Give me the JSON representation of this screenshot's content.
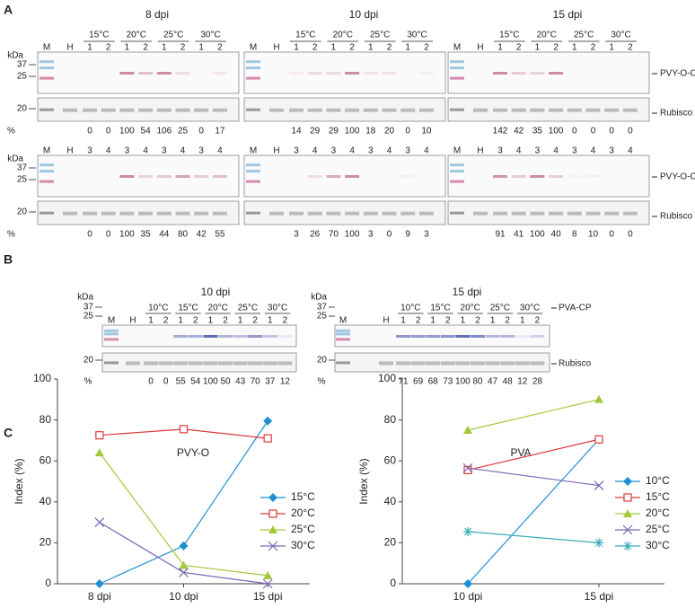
{
  "panel_labels": [
    "A",
    "B",
    "C"
  ],
  "labels": {
    "kda": "kDa",
    "markers": [
      "37",
      "25",
      "20"
    ],
    "percent": "%",
    "marker_lane": "M",
    "healthy_lane": "H",
    "rubisco": "Rubisco"
  },
  "panel_a": {
    "target": "PVY-O-CP",
    "titles": [
      "8 dpi",
      "10 dpi",
      "15 dpi"
    ],
    "temperatures": [
      "15°C",
      "20°C",
      "25°C",
      "30°C"
    ],
    "rows": [
      {
        "replicates": [
          "1",
          "2"
        ],
        "percent": [
          [
            0,
            0,
            100,
            54,
            106,
            25,
            0,
            17
          ],
          [
            14,
            29,
            29,
            100,
            18,
            20,
            0,
            10
          ],
          [
            142,
            42,
            35,
            100,
            0,
            0,
            0,
            0
          ]
        ]
      },
      {
        "replicates": [
          "3",
          "4"
        ],
        "percent": [
          [
            0,
            0,
            100,
            35,
            44,
            80,
            42,
            55
          ],
          [
            3,
            26,
            70,
            100,
            3,
            0,
            9,
            3
          ],
          [
            91,
            41,
            100,
            40,
            8,
            10,
            0,
            0
          ]
        ]
      }
    ]
  },
  "panel_b": {
    "target": "PVA-CP",
    "titles": [
      "10 dpi",
      "15 dpi"
    ],
    "temperatures": [
      "10°C",
      "15°C",
      "20°C",
      "25°C",
      "30°C"
    ],
    "replicates": [
      "1",
      "2"
    ],
    "percent": [
      [
        0,
        0,
        55,
        54,
        100,
        50,
        43,
        70,
        37,
        12
      ],
      [
        71,
        69,
        68,
        73,
        100,
        80,
        47,
        48,
        12,
        28
      ]
    ]
  },
  "chart_data": [
    {
      "type": "line",
      "title": "PVY-O",
      "y_label": "Index (%)",
      "categories": [
        "8 dpi",
        "10 dpi",
        "15 dpi"
      ],
      "ylim": [
        0,
        100
      ],
      "yticks": [
        0,
        20,
        40,
        60,
        80,
        100
      ],
      "legend": "lower right",
      "series": [
        {
          "name": "15°C",
          "color": "#1f8fd3",
          "marker": "diamond",
          "values": [
            0,
            18.5,
            79.5
          ]
        },
        {
          "name": "20°C",
          "color": "#e0383c",
          "marker": "square",
          "values": [
            72.5,
            75.5,
            71
          ]
        },
        {
          "name": "25°C",
          "color": "#a3c93a",
          "marker": "triangle",
          "values": [
            64,
            9,
            4
          ]
        },
        {
          "name": "30°C",
          "color": "#7a66b5",
          "marker": "x",
          "values": [
            30,
            5.5,
            0
          ]
        }
      ]
    },
    {
      "type": "line",
      "title": "PVA",
      "y_label": "Index (%)",
      "categories": [
        "10 dpi",
        "15 dpi"
      ],
      "ylim": [
        0,
        100
      ],
      "yticks": [
        0,
        20,
        40,
        60,
        80,
        100
      ],
      "legend": "lower right",
      "series": [
        {
          "name": "10°C",
          "color": "#1f8fd3",
          "marker": "diamond",
          "values": [
            0,
            70.5
          ]
        },
        {
          "name": "15°C",
          "color": "#e0383c",
          "marker": "square",
          "values": [
            55.5,
            70.5
          ]
        },
        {
          "name": "20°C",
          "color": "#a3c93a",
          "marker": "triangle",
          "values": [
            75,
            90
          ]
        },
        {
          "name": "25°C",
          "color": "#7a66b5",
          "marker": "x",
          "values": [
            56.5,
            48
          ]
        },
        {
          "name": "30°C",
          "color": "#38adb7",
          "marker": "asterisk",
          "values": [
            25.5,
            20
          ]
        }
      ]
    }
  ]
}
